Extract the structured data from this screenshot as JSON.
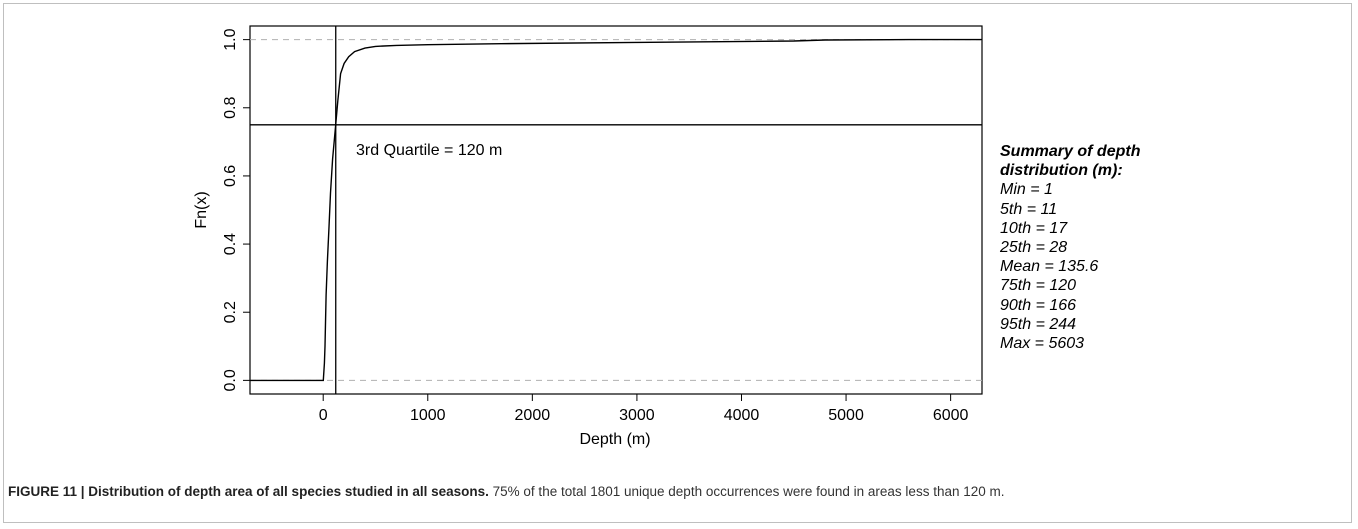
{
  "chart_data": {
    "type": "line",
    "title": "",
    "xlabel": "Depth (m)",
    "ylabel": "Fn(x)",
    "xlim": [
      -700,
      6300
    ],
    "ylim": [
      -0.04,
      1.04
    ],
    "xticks": [
      0,
      1000,
      2000,
      3000,
      4000,
      5000,
      6000
    ],
    "xtick_labels": [
      "0",
      "1000",
      "2000",
      "3000",
      "4000",
      "5000",
      "6000"
    ],
    "yticks": [
      0.0,
      0.2,
      0.4,
      0.6,
      0.8,
      1.0
    ],
    "ytick_labels": [
      "0.0",
      "0.2",
      "0.4",
      "0.6",
      "0.8",
      "1.0"
    ],
    "hlines_dashed": [
      0.0,
      1.0
    ],
    "vline": 120,
    "hline": 0.75,
    "annotation": "3rd Quartile = 120 m",
    "series": [
      {
        "x": [
          -700,
          1,
          11,
          17,
          28,
          40,
          55,
          70,
          90,
          120,
          140,
          166,
          200,
          244,
          300,
          400,
          500,
          700,
          1000,
          1700,
          3000,
          4500,
          4800,
          5603,
          6300
        ],
        "y": [
          0.0,
          0.0,
          0.05,
          0.1,
          0.25,
          0.35,
          0.45,
          0.55,
          0.65,
          0.75,
          0.82,
          0.9,
          0.93,
          0.95,
          0.965,
          0.975,
          0.98,
          0.983,
          0.985,
          0.988,
          0.992,
          0.996,
          0.999,
          1.0,
          1.0
        ]
      }
    ]
  },
  "summary": {
    "title_line1": "Summary of depth",
    "title_line2": "distribution (m):",
    "stats": [
      "Min = 1",
      "5th = 11",
      "10th = 17",
      "25th = 28",
      "Mean = 135.6",
      "75th = 120",
      "90th = 166",
      "95th = 244",
      "Max = 5603"
    ]
  },
  "caption": {
    "label": "FIGURE 11 | Distribution of depth area of all species studied in all seasons.",
    "text": " 75% of the total 1801 unique depth occurrences were found in areas less than 120 m."
  }
}
